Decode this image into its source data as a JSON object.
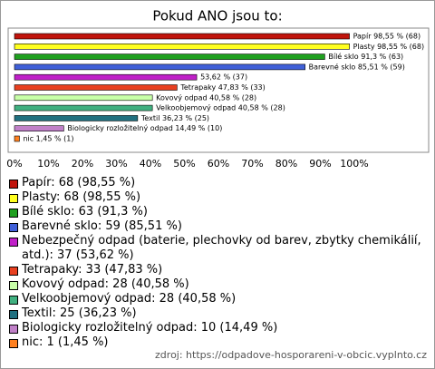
{
  "chart_data": {
    "type": "bar",
    "orientation": "horizontal",
    "title": "Pokud ANO jsou to:",
    "values": [
      98.55,
      98.55,
      91.3,
      85.51,
      53.62,
      47.83,
      40.58,
      40.58,
      36.23,
      14.49,
      1.45
    ],
    "value_labels": [
      "Papír 98,55 % (68)",
      "Plasty 98,55 % (68)",
      "Bílé sklo 91,3 % (63)",
      "Barevné sklo 85,51 % (59)",
      "53,62 % (37)",
      "Tetrapaky 47,83 % (33)",
      "Kovový odpad 40,58 % (28)",
      "Velkoobjemový odpad 40,58 % (28)",
      "Textil 36,23 % (25)",
      "Biologicky rozložitelný odpad 14,49 % (10)",
      "nic 1,45 % (1)"
    ],
    "colors": [
      "#c0140c",
      "#ffff20",
      "#20a020",
      "#4060d8",
      "#c020c8",
      "#e84020",
      "#c8ffa8",
      "#40b080",
      "#207080",
      "#c080c8",
      "#ff8020"
    ],
    "legend_labels": [
      "Papír: 68 (98,55 %)",
      "Plasty: 68 (98,55 %)",
      "Bílé sklo: 63 (91,3 %)",
      "Barevné sklo: 59 (85,51 %)",
      "Nebezpečný odpad (baterie, plechovky od barev, zbytky chemikálií, atd.): 37 (53,62 %)",
      "Tetrapaky: 33 (47,83 %)",
      "Kovový odpad: 28 (40,58 %)",
      "Velkoobjemový odpad: 28 (40,58 %)",
      "Textil: 25 (36,23 %)",
      "Biologicky rozložitelný odpad: 10 (14,49 %)",
      "nic: 1 (1,45 %)"
    ],
    "xlim": [
      0,
      100
    ],
    "xticks": [
      {
        "value": 0,
        "label": "0%"
      },
      {
        "value": 10,
        "label": "10%"
      },
      {
        "value": 20,
        "label": "20%"
      },
      {
        "value": 30,
        "label": "30%"
      },
      {
        "value": 40,
        "label": "40%"
      },
      {
        "value": 50,
        "label": "50%"
      },
      {
        "value": 60,
        "label": "60%"
      },
      {
        "value": 70,
        "label": "70%"
      },
      {
        "value": 80,
        "label": "80%"
      },
      {
        "value": 90,
        "label": "90%"
      },
      {
        "value": 100,
        "label": "100%"
      }
    ],
    "source": "zdroj: https://odpadove-hosporareni-v-obcic.vyplnto.cz"
  }
}
